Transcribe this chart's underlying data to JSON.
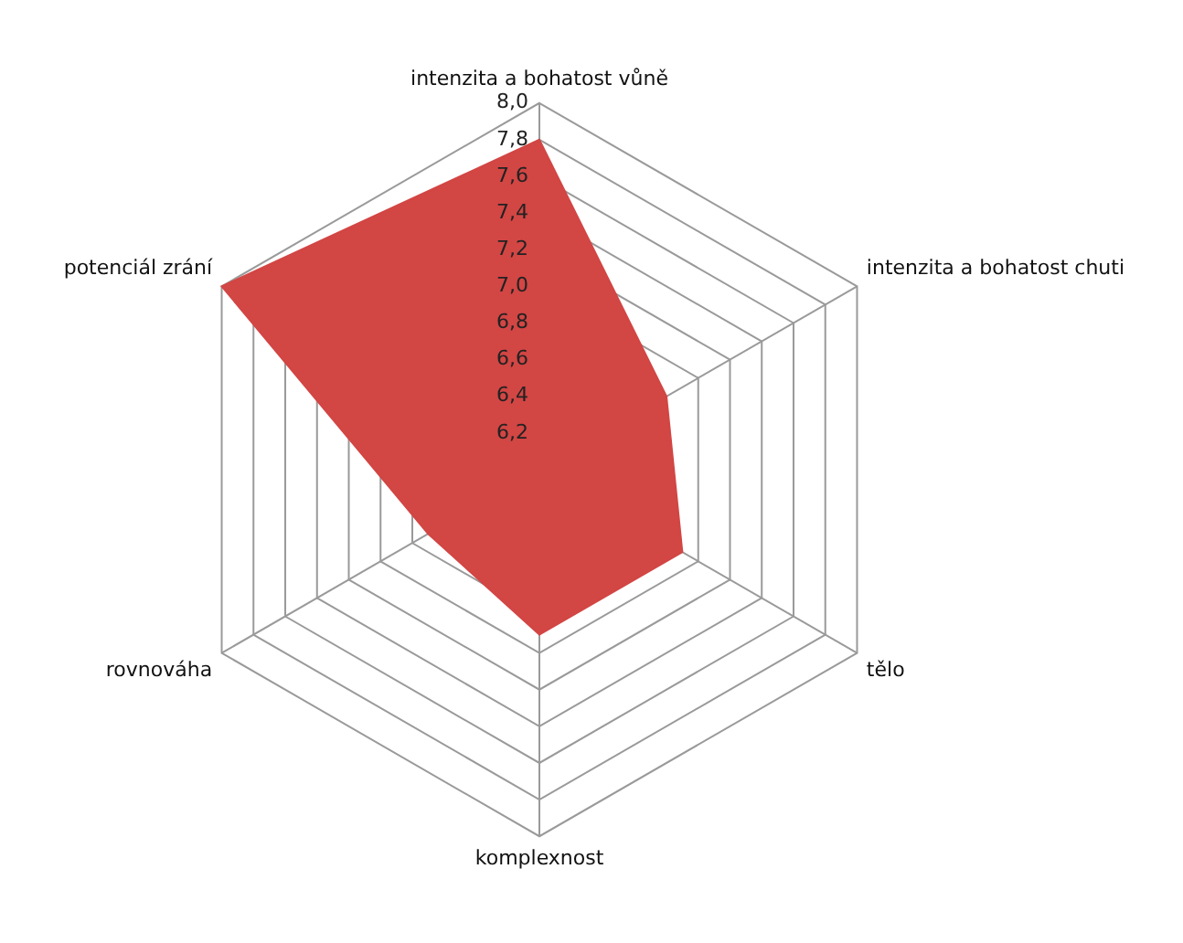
{
  "chart_data": {
    "type": "radar",
    "categories": [
      "intenzita a bohatost vůně",
      "intenzita a bohatost chuti",
      "tělo",
      "komplexnost",
      "rovnováha",
      "potenciál zrání"
    ],
    "series": [
      {
        "color": "#d24644",
        "values": [
          7.8,
          6.8,
          6.9,
          6.9,
          6.7,
          8.0
        ]
      }
    ],
    "ylim": [
      6,
      8
    ],
    "yticks": [
      {
        "value": 6.2,
        "label": "6,2"
      },
      {
        "value": 6.4,
        "label": "6,4"
      },
      {
        "value": 6.6,
        "label": "6,6"
      },
      {
        "value": 6.8,
        "label": "6,8"
      },
      {
        "value": 7.0,
        "label": "7,0"
      },
      {
        "value": 7.2,
        "label": "7,2"
      },
      {
        "value": 7.4,
        "label": "7,4"
      },
      {
        "value": 7.6,
        "label": "7,6"
      },
      {
        "value": 7.8,
        "label": "7,8"
      },
      {
        "value": 8.0,
        "label": "8,0"
      }
    ],
    "legend": false
  }
}
